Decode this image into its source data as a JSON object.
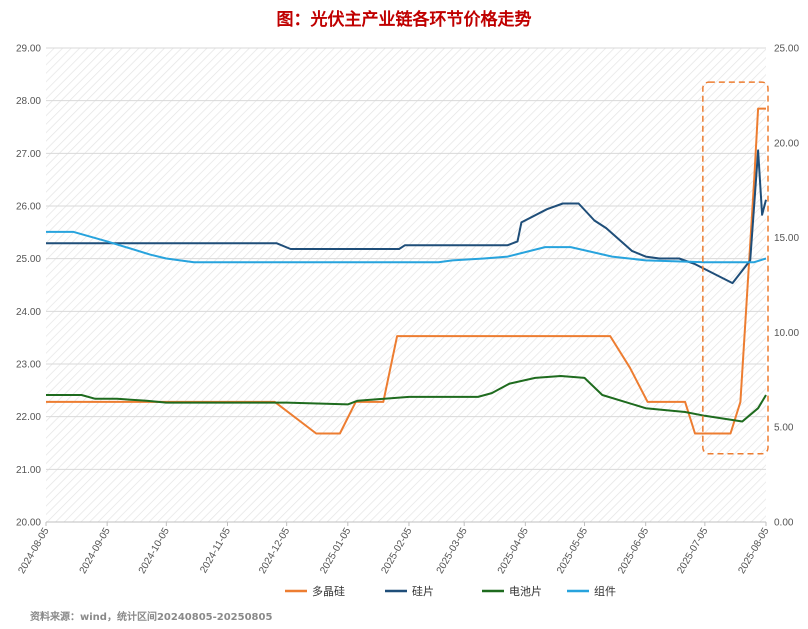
{
  "chart_data": {
    "type": "line",
    "title": "图：光伏主产业链各环节价格走势",
    "source_note": "资料来源：wind，统计区间20240805-20250805",
    "x_tick_labels": [
      "2024-08-05",
      "2024-09-05",
      "2024-10-05",
      "2024-11-05",
      "2024-12-05",
      "2025-01-05",
      "2025-02-05",
      "2025-03-05",
      "2025-04-05",
      "2025-05-05",
      "2025-06-05",
      "2025-07-05",
      "2025-08-05"
    ],
    "x_range": [
      "2024-08-05",
      "2025-08-05"
    ],
    "y_left": {
      "min": 20,
      "max": 29,
      "ticks": [
        "20.00",
        "21.00",
        "22.00",
        "23.00",
        "24.00",
        "25.00",
        "26.00",
        "27.00",
        "28.00",
        "29.00"
      ]
    },
    "y_right": {
      "min": 0,
      "max": 25,
      "ticks": [
        "0.00",
        "5.00",
        "10.00",
        "15.00",
        "20.00",
        "25.00"
      ]
    },
    "grid": "horizontal",
    "background": "diagonal-hatch",
    "legend_position": "bottom",
    "highlight_box": {
      "from": "2025-07-05",
      "to": "2025-08-05",
      "style": "dashed",
      "color": "#ed7d31"
    },
    "series": [
      {
        "name": "多晶硅",
        "axis": "left",
        "color": "#ed7d31",
        "points": [
          [
            "2024-08-05",
            22.28
          ],
          [
            "2024-11-29",
            22.28
          ],
          [
            "2024-12-20",
            21.68
          ],
          [
            "2025-01-01",
            21.68
          ],
          [
            "2025-01-09",
            22.28
          ],
          [
            "2025-01-23",
            22.28
          ],
          [
            "2025-01-30",
            23.53
          ],
          [
            "2025-04-23",
            23.53
          ],
          [
            "2025-05-18",
            23.53
          ],
          [
            "2025-05-28",
            22.93
          ],
          [
            "2025-06-06",
            22.28
          ],
          [
            "2025-06-25",
            22.28
          ],
          [
            "2025-06-30",
            21.68
          ],
          [
            "2025-07-18",
            21.68
          ],
          [
            "2025-07-23",
            22.28
          ],
          [
            "2025-07-30",
            26.5
          ],
          [
            "2025-08-01",
            27.85
          ],
          [
            "2025-08-05",
            27.85
          ]
        ]
      },
      {
        "name": "硅片",
        "axis": "right",
        "color": "#1f4e79",
        "points": [
          [
            "2024-08-05",
            14.7
          ],
          [
            "2024-11-30",
            14.7
          ],
          [
            "2024-12-07",
            14.4
          ],
          [
            "2025-01-31",
            14.4
          ],
          [
            "2025-02-03",
            14.6
          ],
          [
            "2025-03-27",
            14.6
          ],
          [
            "2025-04-01",
            14.8
          ],
          [
            "2025-04-03",
            15.8
          ],
          [
            "2025-04-16",
            16.5
          ],
          [
            "2025-04-24",
            16.8
          ],
          [
            "2025-05-02",
            16.8
          ],
          [
            "2025-05-10",
            15.9
          ],
          [
            "2025-05-16",
            15.5
          ],
          [
            "2025-05-29",
            14.3
          ],
          [
            "2025-06-05",
            14.0
          ],
          [
            "2025-06-12",
            13.9
          ],
          [
            "2025-06-22",
            13.9
          ],
          [
            "2025-06-30",
            13.6
          ],
          [
            "2025-07-19",
            12.6
          ],
          [
            "2025-07-28",
            13.8
          ],
          [
            "2025-08-01",
            19.6
          ],
          [
            "2025-08-03",
            16.2
          ],
          [
            "2025-08-05",
            17.0
          ]
        ]
      },
      {
        "name": "电池片",
        "axis": "right",
        "color": "#1e6b1e",
        "points": [
          [
            "2024-08-05",
            6.7
          ],
          [
            "2024-08-23",
            6.7
          ],
          [
            "2024-08-30",
            6.5
          ],
          [
            "2024-09-10",
            6.5
          ],
          [
            "2024-09-25",
            6.4
          ],
          [
            "2024-10-05",
            6.3
          ],
          [
            "2024-12-05",
            6.3
          ],
          [
            "2025-01-05",
            6.2
          ],
          [
            "2025-01-10",
            6.4
          ],
          [
            "2025-02-05",
            6.6
          ],
          [
            "2025-03-12",
            6.6
          ],
          [
            "2025-03-19",
            6.8
          ],
          [
            "2025-03-28",
            7.3
          ],
          [
            "2025-04-10",
            7.6
          ],
          [
            "2025-04-23",
            7.7
          ],
          [
            "2025-05-05",
            7.6
          ],
          [
            "2025-05-14",
            6.7
          ],
          [
            "2025-06-05",
            6.0
          ],
          [
            "2025-06-25",
            5.8
          ],
          [
            "2025-07-05",
            5.6
          ],
          [
            "2025-07-24",
            5.3
          ],
          [
            "2025-08-01",
            6.0
          ],
          [
            "2025-08-05",
            6.7
          ]
        ]
      },
      {
        "name": "组件",
        "axis": "right",
        "color": "#27a3dd",
        "points": [
          [
            "2024-08-05",
            15.3
          ],
          [
            "2024-08-19",
            15.3
          ],
          [
            "2024-09-05",
            14.8
          ],
          [
            "2024-09-27",
            14.1
          ],
          [
            "2024-10-05",
            13.9
          ],
          [
            "2024-10-19",
            13.7
          ],
          [
            "2024-11-05",
            13.7
          ],
          [
            "2025-02-20",
            13.7
          ],
          [
            "2025-02-27",
            13.8
          ],
          [
            "2025-03-15",
            13.9
          ],
          [
            "2025-03-27",
            14.0
          ],
          [
            "2025-04-15",
            14.5
          ],
          [
            "2025-04-28",
            14.5
          ],
          [
            "2025-05-19",
            14.0
          ],
          [
            "2025-06-05",
            13.8
          ],
          [
            "2025-07-05",
            13.7
          ],
          [
            "2025-07-30",
            13.7
          ],
          [
            "2025-08-05",
            13.9
          ]
        ]
      }
    ]
  }
}
